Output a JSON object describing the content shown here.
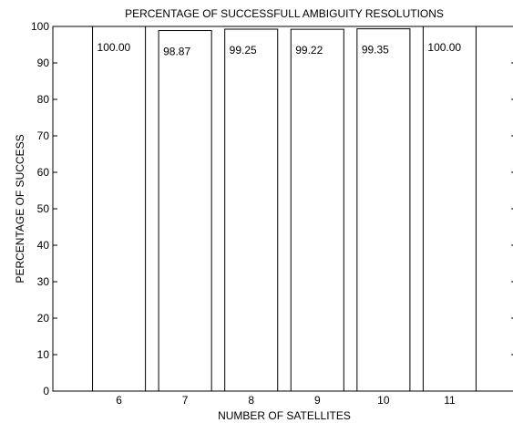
{
  "chart_data": {
    "type": "bar",
    "title": "PERCENTAGE OF SUCCESSFULL AMBIGUITY RESOLUTIONS",
    "xlabel": "NUMBER OF SATELLITES",
    "ylabel": "PERCENTAGE OF SUCCESS",
    "categories": [
      "6",
      "7",
      "8",
      "9",
      "10",
      "11"
    ],
    "values": [
      100.0,
      98.87,
      99.25,
      99.22,
      99.35,
      100.0
    ],
    "data_labels": [
      "100.00",
      "98.87",
      "99.25",
      "99.22",
      "99.35",
      "100.00"
    ],
    "xlim": [
      5,
      12
    ],
    "ylim": [
      0,
      100
    ],
    "yticks": [
      0,
      10,
      20,
      30,
      40,
      50,
      60,
      70,
      80,
      90,
      100
    ],
    "bar_fill": "#ffffff",
    "bar_stroke": "#000000",
    "grid": false,
    "legend": "none"
  }
}
